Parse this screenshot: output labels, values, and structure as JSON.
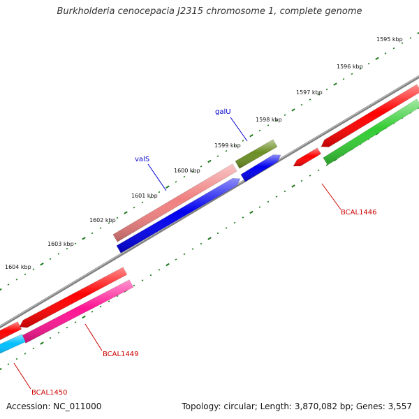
{
  "title": "Burkholderia cenocepacia J2315 chromosome 1, complete genome",
  "footer": {
    "accession": "Accession: NC_011000",
    "summary": "Topology: circular; Length: 3,870,082 bp; Genes: 3,557"
  },
  "ticks": [
    {
      "label": "1595 kbp"
    },
    {
      "label": "1596 kbp"
    },
    {
      "label": "1597 kbp"
    },
    {
      "label": "1598 kbp"
    },
    {
      "label": "1599 kbp"
    },
    {
      "label": "1600 kbp"
    },
    {
      "label": "1601 kbp"
    },
    {
      "label": "1602 kbp"
    },
    {
      "label": "1603 kbp"
    },
    {
      "label": "1604 kbp"
    }
  ],
  "gene_labels": [
    {
      "text": "galU",
      "color": "#0000cc"
    },
    {
      "text": "valS",
      "color": "#0000cc"
    },
    {
      "text": "BCAL1446",
      "color": "#cc0000"
    },
    {
      "text": "BCAL1449",
      "color": "#cc0000"
    },
    {
      "text": "BCAL1450",
      "color": "#cc0000"
    }
  ],
  "colors": {
    "backbone": "#808080",
    "tick": "#1a7a1a",
    "cds_red": "#ff0000",
    "cds_green": "#33cc33",
    "cds_olive": "#6b8e23",
    "cds_pink": "#f08080",
    "cds_blue": "#0000ee",
    "cds_magenta": "#ff1493",
    "cds_cyan": "#00bfff"
  }
}
